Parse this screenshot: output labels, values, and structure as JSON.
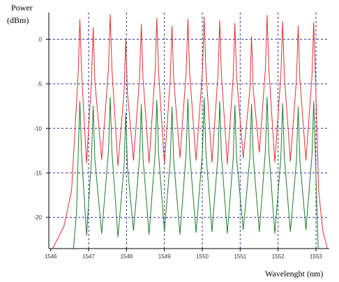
{
  "chart_data": {
    "type": "line",
    "title": "",
    "ylabel_line1": "Power",
    "ylabel_line2": "(dBm)",
    "xlabel": "Wavelenght (nm)",
    "xlim": [
      1545.95,
      1553.35
    ],
    "ylim": [
      -23.5,
      3.0
    ],
    "xticks": [
      1546,
      1547,
      1548,
      1549,
      1550,
      1551,
      1552,
      1553
    ],
    "yticks": [
      0,
      -5,
      -10,
      -15,
      -20
    ],
    "grid": true,
    "grid_x": [
      1547,
      1548,
      1549,
      1550,
      1551,
      1552,
      1553
    ],
    "grid_y": [
      0,
      -5,
      -10,
      -15,
      -20
    ],
    "colors": {
      "red_series": "#e03030",
      "green_series": "#1f7a2a",
      "grid": "#2a2a9a",
      "axis": "#000000"
    },
    "series": [
      {
        "color": "red",
        "peaks_x": [
          1546.77,
          1547.12,
          1547.57,
          1547.98,
          1548.39,
          1548.8,
          1549.2,
          1549.62,
          1550.05,
          1550.46,
          1550.86,
          1551.3,
          1551.71,
          1552.12,
          1552.53,
          1552.94
        ],
        "peaks_y": [
          2.2,
          1.3,
          2.8,
          0.0,
          1.7,
          2.4,
          1.5,
          2.3,
          2.5,
          2.1,
          1.8,
          0.3,
          2.7,
          2.0,
          1.5,
          1.9
        ],
        "valleys_y": [
          -13.9,
          -13.5,
          -14.2,
          -13.6,
          -13.9,
          -14.0,
          -13.3,
          -13.6,
          -13.8,
          -14.0,
          -13.3,
          -12.7,
          -13.8,
          -13.7,
          -13.6
        ],
        "edges": [
          [
            1546.05,
            -23.5
          ],
          [
            1546.35,
            -21.0
          ],
          [
            1546.55,
            -17.0
          ],
          [
            1553.07,
            -17.0
          ],
          [
            1553.18,
            -21.5
          ],
          [
            1553.3,
            -23.5
          ]
        ]
      },
      {
        "color": "green",
        "peaks_x": [
          1546.77,
          1547.12,
          1547.57,
          1547.98,
          1548.39,
          1548.8,
          1549.2,
          1549.62,
          1550.05,
          1550.46,
          1550.86,
          1551.3,
          1551.71,
          1552.12,
          1552.53,
          1552.94
        ],
        "peaks_y": [
          -7.0,
          -7.5,
          -6.5,
          -8.3,
          -7.3,
          -6.8,
          -7.6,
          -6.7,
          -6.6,
          -7.0,
          -7.4,
          -7.3,
          -6.5,
          -7.2,
          -7.6,
          -7.0
        ],
        "valleys_y": [
          -22.0,
          -21.8,
          -22.2,
          -21.5,
          -21.9,
          -21.6,
          -21.9,
          -21.7,
          -21.6,
          -21.8,
          -21.4,
          -21.6,
          -21.8,
          -21.6,
          -21.4
        ],
        "edges": [
          [
            1546.6,
            -23.5
          ],
          [
            1546.68,
            -19.5
          ],
          [
            1553.02,
            -18.5
          ],
          [
            1553.06,
            -23.5
          ]
        ]
      }
    ]
  }
}
